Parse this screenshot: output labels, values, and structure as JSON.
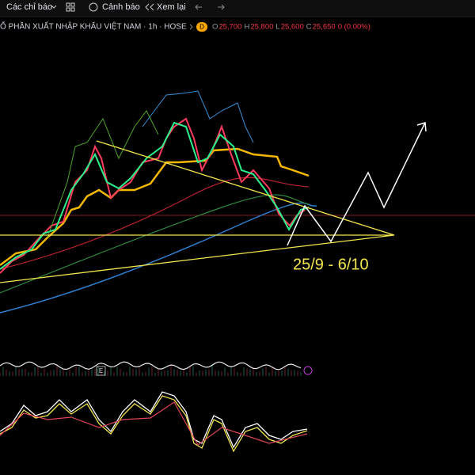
{
  "toolbar": {
    "indicators": "Các chỉ báo",
    "alerts": "Cảnh báo",
    "replay": "Xem lại"
  },
  "header": {
    "symbol": "Ổ PHẦN XUẤT NHẬP KHẨU VIỆT NAM · 1h · HOSE",
    "badge": "D",
    "ohlc": [
      {
        "label": "O",
        "value": "25,700"
      },
      {
        "label": "H",
        "value": "25,800"
      },
      {
        "label": "L",
        "value": "25,600"
      },
      {
        "label": "C",
        "value": "25,650"
      }
    ],
    "change": "0 (0.00%)"
  },
  "annotation": "25/9 - 6/10",
  "volume_pane": {
    "badge": "E"
  }
}
